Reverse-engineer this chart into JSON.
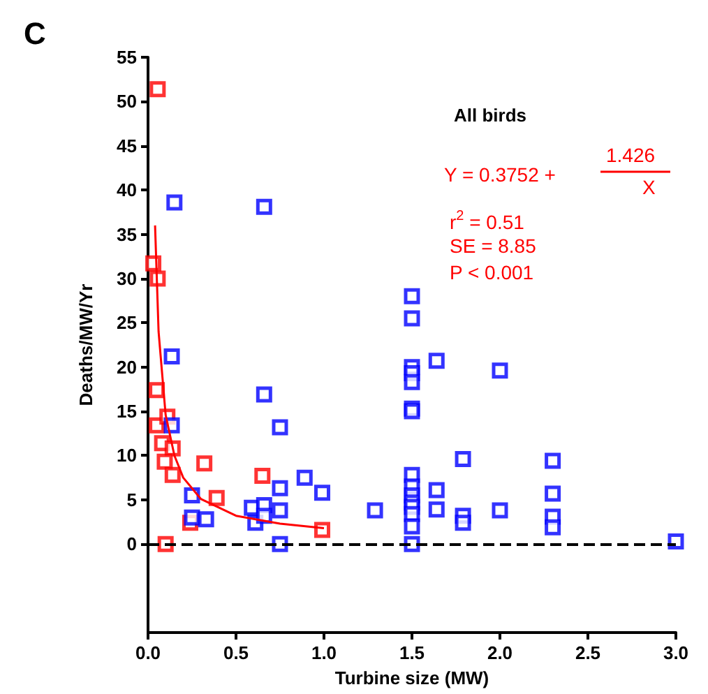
{
  "chart_data": {
    "type": "scatter",
    "title": "C",
    "xlabel": "Turbine size (MW)",
    "ylabel": "Deaths/MW/Yr",
    "annotations": [
      "All birds",
      "Y = 0.3752 +",
      "1.426",
      "X",
      "r$^{2}$ = 0.51",
      "SE = 8.85",
      "P < 0.001"
    ],
    "xlim": [
      0,
      3
    ],
    "xticks": [
      {
        "value": 0,
        "label": "0.0"
      },
      {
        "value": 0.5,
        "label": "0.5"
      },
      {
        "value": 1,
        "label": "1.0"
      },
      {
        "value": 1.5,
        "label": "1.5"
      },
      {
        "value": 2,
        "label": "2.0"
      },
      {
        "value": 2.5,
        "label": "2.5"
      },
      {
        "value": 3,
        "label": "3.0"
      }
    ],
    "ylim": [
      -10,
      55
    ],
    "yticks": [
      0,
      5,
      10,
      15,
      20,
      25,
      30,
      35,
      40,
      45,
      50,
      55
    ],
    "grid": false,
    "marker": "square",
    "ref_lines": [
      {
        "axis": "y",
        "value": 0,
        "color": "#000000",
        "line_style": "dashed"
      }
    ],
    "series": [
      {
        "color": "#ff0000",
        "x": [
          0.055,
          0.03,
          0.055,
          0.05,
          0.05,
          0.11,
          0.08,
          0.14,
          0.095,
          0.14,
          0.32,
          0.39,
          0.65,
          0.99,
          0.24,
          0.1
        ],
        "values": [
          51.4,
          31.7,
          30,
          17.4,
          13.4,
          14.4,
          11.4,
          10.8,
          9.3,
          7.8,
          9.1,
          5.2,
          7.7,
          1.6,
          2.4,
          0
        ]
      },
      {
        "color": "#0000ff",
        "x": [
          0.15,
          0.66,
          0.135,
          0.66,
          0.75,
          0.135,
          0.25,
          0.25,
          0.33,
          0.59,
          0.61,
          0.66,
          0.66,
          0.75,
          0.75,
          0.75,
          0.89,
          0.99,
          1.29,
          1.5,
          1.5,
          1.5,
          1.5,
          1.5,
          1.5,
          1.5,
          1.5,
          1.5,
          1.5,
          1.5,
          1.5,
          1.5,
          1.5,
          1.5,
          1.64,
          1.64,
          1.64,
          1.79,
          1.79,
          1.79,
          2.0,
          2.0,
          2.3,
          2.3,
          2.3,
          2.3,
          3.0
        ],
        "values": [
          38.6,
          38.1,
          21.2,
          16.9,
          13.2,
          13.4,
          5.5,
          3,
          2.8,
          4.1,
          2.4,
          4.4,
          3.2,
          6.3,
          3.8,
          0,
          7.5,
          5.8,
          3.8,
          28,
          25.5,
          20,
          19.3,
          18.3,
          15.3,
          15,
          7.8,
          6.5,
          5.5,
          4.7,
          4.2,
          3.4,
          2,
          0,
          20.7,
          6.1,
          3.9,
          9.6,
          3.2,
          2.4,
          19.6,
          3.8,
          9.4,
          5.7,
          3.1,
          1.9,
          0.3
        ]
      },
      {
        "type": "line",
        "color": "#ff0000",
        "marker": "none",
        "line_style": "solid",
        "x": [
          0.04,
          0.06,
          0.1,
          0.15,
          0.2,
          0.3,
          0.5,
          0.75,
          1.0
        ],
        "values": [
          36,
          24,
          14.6,
          10,
          7.5,
          5.1,
          3.2,
          2.3,
          1.8
        ]
      }
    ]
  }
}
